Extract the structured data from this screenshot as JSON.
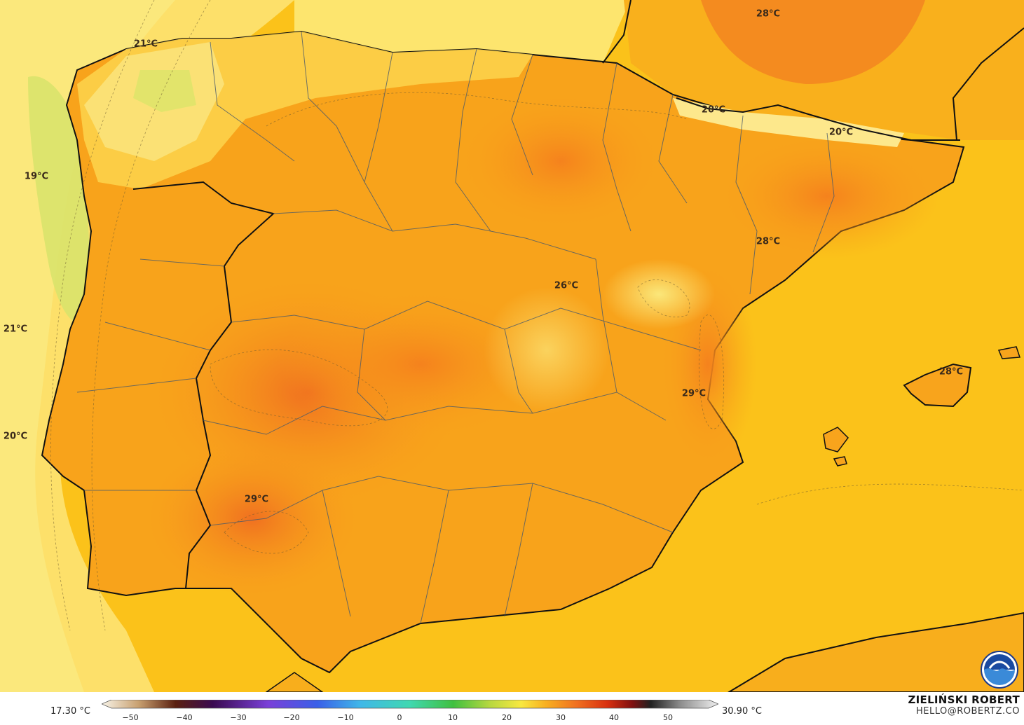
{
  "map": {
    "temperature_labels": [
      {
        "text": "21°C"
      },
      {
        "text": "19°C"
      },
      {
        "text": "21°C"
      },
      {
        "text": "20°C"
      },
      {
        "text": "28°C"
      },
      {
        "text": "20°C"
      },
      {
        "text": "20°C"
      },
      {
        "text": "28°C"
      },
      {
        "text": "26°C"
      },
      {
        "text": "29°C"
      },
      {
        "text": "28°C"
      },
      {
        "text": "29°C"
      }
    ]
  },
  "legend": {
    "min_value": "17.30 °C",
    "max_value": "30.90 °C",
    "ticks": [
      "−50",
      "−40",
      "−30",
      "−20",
      "−10",
      "0",
      "10",
      "20",
      "30",
      "40",
      "50"
    ]
  },
  "credit": {
    "name": "ZIELIŃSKI ROBERT",
    "email": "HELLO@ROBERTZ.CO"
  },
  "logo": {
    "icon": "noaa-logo-icon"
  }
}
